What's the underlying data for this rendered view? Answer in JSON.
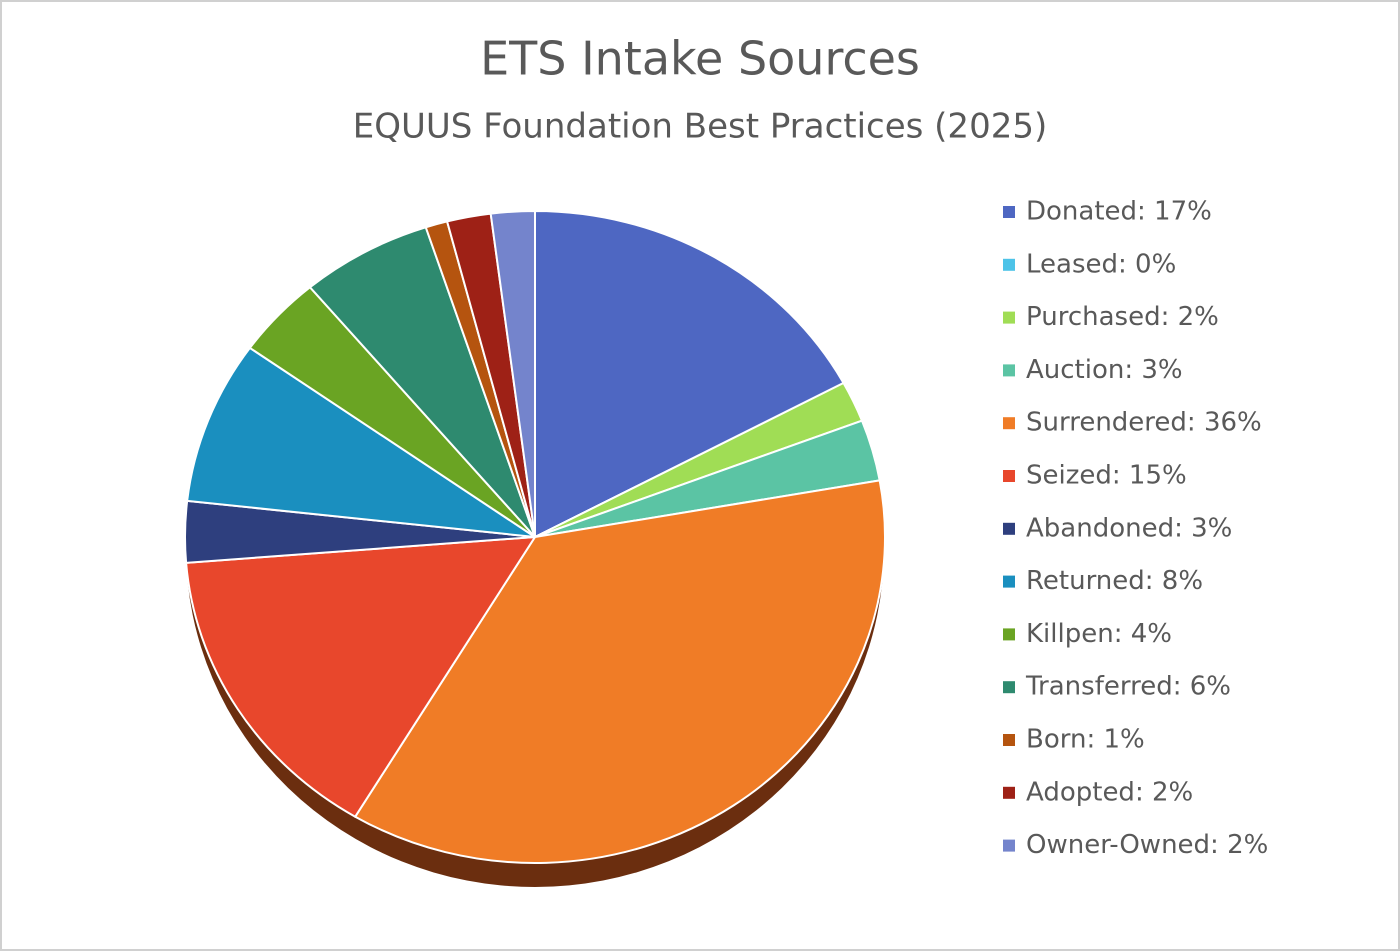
{
  "chart_data": {
    "type": "pie",
    "title": "ETS Intake Sources",
    "subtitle": "EQUUS Foundation Best Practices (2025)",
    "categories": [
      "Donated: 17%",
      "Leased: 0%",
      "Purchased: 2%",
      "Auction: 3%",
      "Surrendered: 36%",
      "Seized: 15%",
      "Abandoned: 3%",
      "Returned: 8%",
      "Killpen: 4%",
      "Transferred: 6%",
      "Born: 1%",
      "Adopted: 2%",
      "Owner-Owned: 2%"
    ],
    "values": [
      17,
      0,
      2,
      3,
      36,
      15,
      3,
      8,
      4,
      6,
      1,
      2,
      2
    ],
    "colors": [
      "#4e67c2",
      "#4dc3e8",
      "#a0dd55",
      "#5bc4a4",
      "#f07c26",
      "#e8472c",
      "#2e3f7e",
      "#1a8fbf",
      "#6aa423",
      "#2e8a6f",
      "#b5540f",
      "#9e2116",
      "#7484cc"
    ],
    "legend": "right"
  }
}
